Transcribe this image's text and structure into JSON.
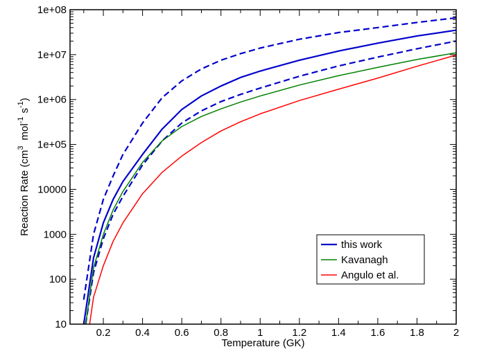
{
  "chart_data": {
    "type": "line",
    "xlabel": "Temperature (GK)",
    "ylabel": "Reaction Rate (cm3 mol-1 s-1)",
    "ylabel_parts": {
      "prefix": "Reaction Rate (cm",
      "sup1": "3",
      "mid1": "mol",
      "sup2": "-1",
      "mid2": "s",
      "sup3": "-1",
      "suffix": ")"
    },
    "xlim": [
      0.03,
      2.0
    ],
    "ylim": [
      10,
      100000000
    ],
    "yscale": "log",
    "x_ticks": [
      {
        "value": 0.2,
        "label": "0.2"
      },
      {
        "value": 0.4,
        "label": "0.4"
      },
      {
        "value": 0.6,
        "label": "0.6"
      },
      {
        "value": 0.8,
        "label": "0.8"
      },
      {
        "value": 1.0,
        "label": "1"
      },
      {
        "value": 1.2,
        "label": "1.2"
      },
      {
        "value": 1.4,
        "label": "1.4"
      },
      {
        "value": 1.6,
        "label": "1.6"
      },
      {
        "value": 1.8,
        "label": "1.8"
      },
      {
        "value": 2.0,
        "label": "2"
      }
    ],
    "y_ticks": [
      {
        "value": 10,
        "label": "10"
      },
      {
        "value": 100,
        "label": "100"
      },
      {
        "value": 1000,
        "label": "1000"
      },
      {
        "value": 10000,
        "label": "10000"
      },
      {
        "value": 100000,
        "label": "1e+05"
      },
      {
        "value": 1000000,
        "label": "1e+06"
      },
      {
        "value": 10000000,
        "label": "1e+07"
      },
      {
        "value": 100000000,
        "label": "1e+08"
      }
    ],
    "grid": false,
    "legend_position": "bottom-right",
    "series": [
      {
        "name": "this work",
        "color": "#0000cc",
        "style": "solid",
        "in_legend": true,
        "x": [
          0.1,
          0.15,
          0.2,
          0.25,
          0.3,
          0.4,
          0.5,
          0.6,
          0.7,
          0.8,
          0.9,
          1.0,
          1.2,
          1.4,
          1.6,
          1.8,
          2.0
        ],
        "y": [
          10,
          300,
          1800,
          6000,
          15000,
          60000,
          220000,
          600000,
          1200000,
          2000000,
          3100000,
          4300000,
          7500000,
          12000000,
          18000000,
          26000000,
          35000000
        ]
      },
      {
        "name": "",
        "color": "#0000cc",
        "style": "dashed",
        "in_legend": false,
        "x": [
          0.1,
          0.15,
          0.2,
          0.25,
          0.3,
          0.4,
          0.5,
          0.6,
          0.7,
          0.8,
          0.9,
          1.0,
          1.2,
          1.4,
          1.6,
          1.8,
          2.0
        ],
        "y": [
          35,
          1000,
          6000,
          20000,
          60000,
          300000,
          1100000,
          2600000,
          4800000,
          7500000,
          10500000,
          14000000,
          22000000,
          31000000,
          40000000,
          52000000,
          66000000
        ]
      },
      {
        "name": "",
        "color": "#0000cc",
        "style": "dashed",
        "in_legend": false,
        "x": [
          0.11,
          0.15,
          0.2,
          0.25,
          0.3,
          0.4,
          0.5,
          0.6,
          0.7,
          0.8,
          0.9,
          1.0,
          1.2,
          1.4,
          1.6,
          1.8,
          2.0
        ],
        "y": [
          10,
          140,
          800,
          2800,
          7000,
          35000,
          120000,
          300000,
          560000,
          900000,
          1300000,
          1800000,
          3300000,
          5600000,
          8800000,
          13500000,
          20000000
        ]
      },
      {
        "name": "Kavanagh",
        "color": "#008000",
        "style": "solid",
        "in_legend": true,
        "x": [
          0.11,
          0.15,
          0.2,
          0.25,
          0.3,
          0.4,
          0.5,
          0.6,
          0.7,
          0.8,
          0.9,
          1.0,
          1.2,
          1.4,
          1.6,
          1.8,
          2.0
        ],
        "y": [
          10,
          180,
          1000,
          3500,
          9000,
          40000,
          120000,
          250000,
          420000,
          620000,
          880000,
          1200000,
          2100000,
          3400000,
          5200000,
          7800000,
          11000000
        ]
      },
      {
        "name": "Angulo et al.",
        "color": "#ff0000",
        "style": "solid",
        "in_legend": true,
        "x": [
          0.13,
          0.15,
          0.2,
          0.25,
          0.3,
          0.4,
          0.5,
          0.6,
          0.7,
          0.8,
          0.9,
          1.0,
          1.2,
          1.4,
          1.6,
          1.8,
          2.0
        ],
        "y": [
          10,
          40,
          200,
          700,
          1800,
          8000,
          24000,
          55000,
          110000,
          200000,
          320000,
          480000,
          950000,
          1700000,
          3000000,
          5500000,
          9800000
        ]
      }
    ]
  }
}
